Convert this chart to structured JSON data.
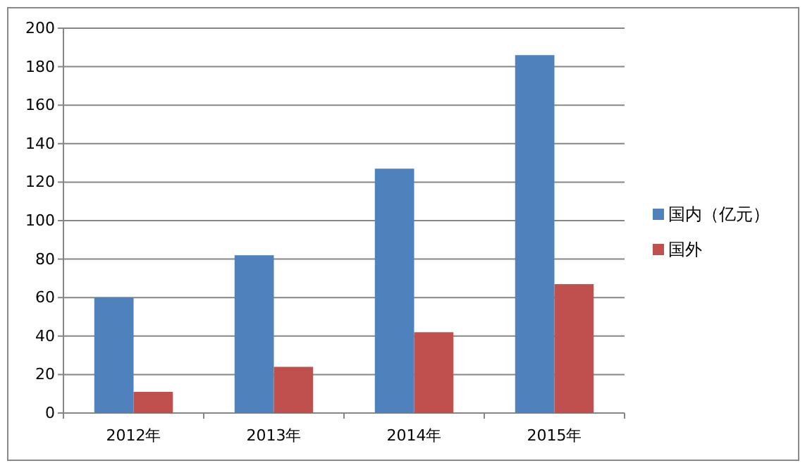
{
  "chart_data": {
    "type": "bar",
    "categories": [
      "2012年",
      "2013年",
      "2014年",
      "2015年"
    ],
    "series": [
      {
        "name": "国内（亿元）",
        "color": "#4f81bd",
        "values": [
          60,
          82,
          127,
          186
        ]
      },
      {
        "name": "国外",
        "color": "#c0504d",
        "values": [
          11,
          24,
          42,
          67
        ]
      }
    ],
    "ylim": [
      0,
      200
    ],
    "yticks": [
      0,
      20,
      40,
      60,
      80,
      100,
      120,
      140,
      160,
      180,
      200
    ],
    "grid": "y",
    "legend": "right"
  }
}
